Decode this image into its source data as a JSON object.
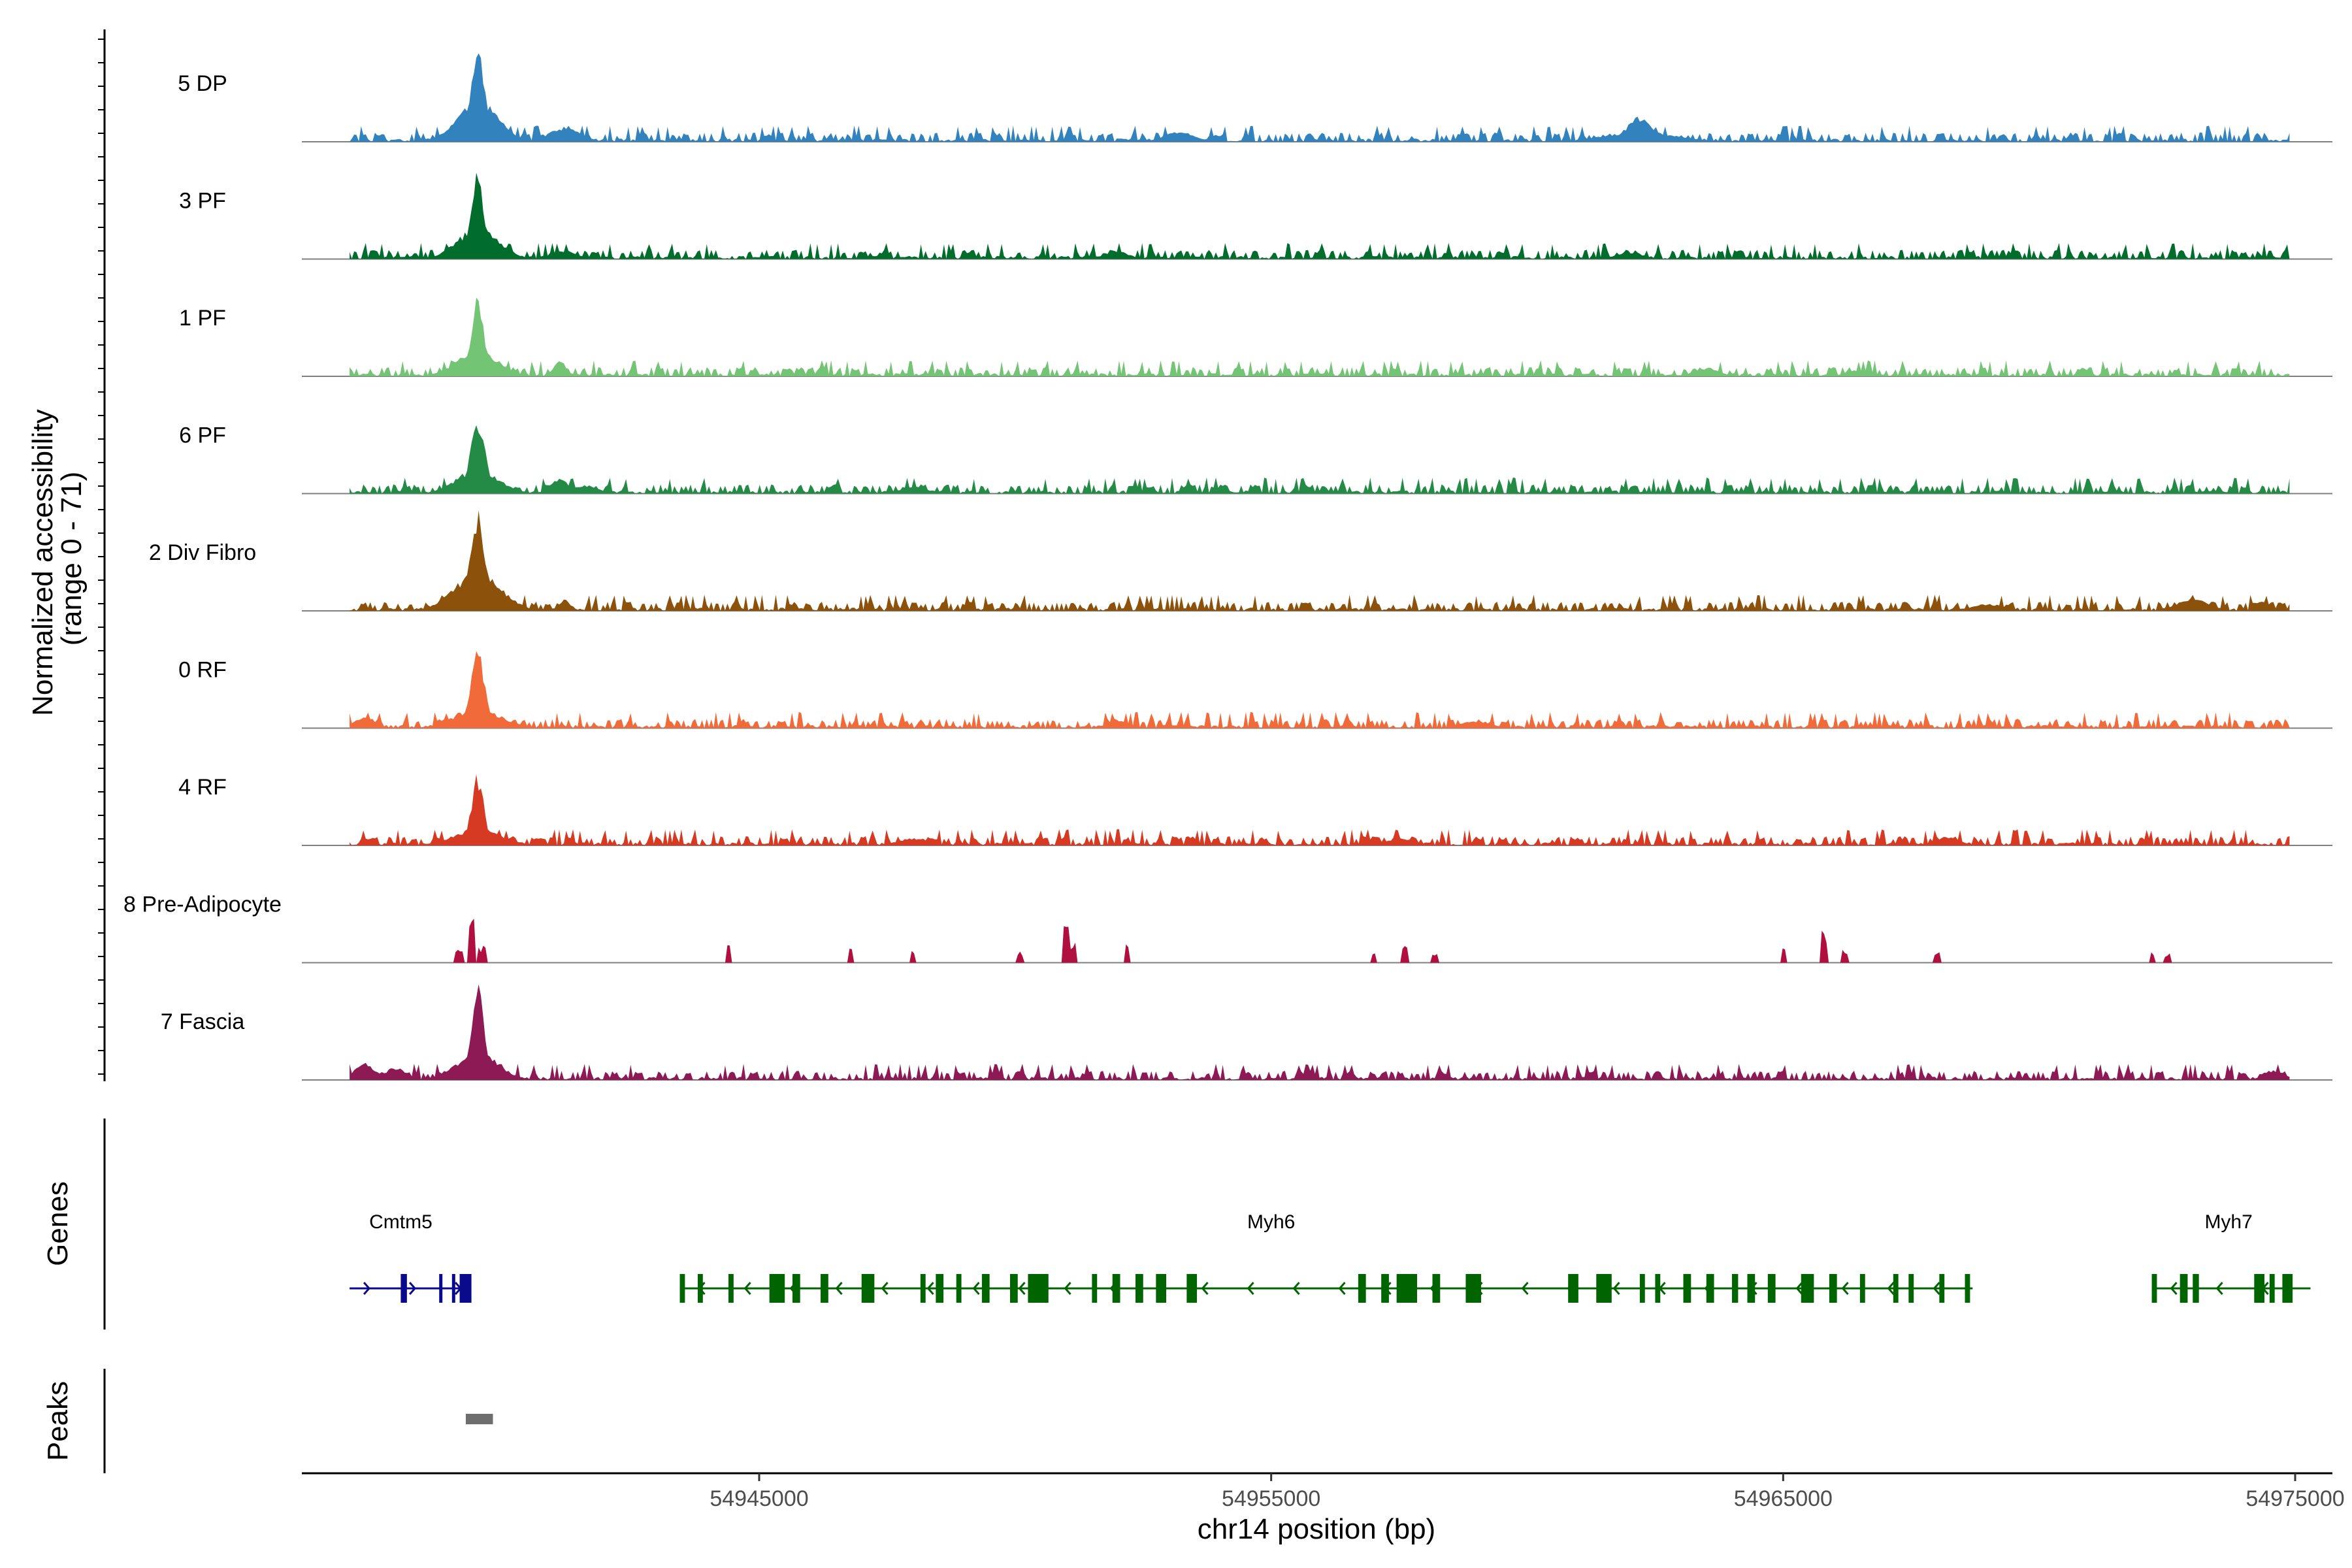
{
  "chart_data": {
    "type": "area",
    "title": "",
    "ylabel": "Normalized accessibility\n(range 0 - 71)",
    "ylabel_lines": [
      "Normalized accessibility",
      "(range 0 - 71)"
    ],
    "xlabel": "chr14 position (bp)",
    "ylim": [
      0,
      71
    ],
    "xlim": [
      54935200,
      54975700
    ],
    "x_ticks": [
      54945000,
      54955000,
      54965000,
      54975000
    ],
    "x_tick_labels": [
      "54945000",
      "54955000",
      "54965000",
      "54975000"
    ],
    "genes_panel_label": "Genes",
    "peaks_panel_label": "Peaks",
    "series": [
      {
        "name": "5 DP",
        "color": "#3182bd",
        "peaks": [
          [
            54939500,
            71,
            130
          ],
          [
            54939500,
            30,
            400
          ],
          [
            54941200,
            10,
            300
          ],
          [
            54953200,
            7,
            300
          ],
          [
            54962200,
            18,
            250
          ],
          [
            54962200,
            7,
            700
          ]
        ]
      },
      {
        "name": "3 PF",
        "color": "#006d2c",
        "peaks": [
          [
            54939500,
            60,
            120
          ],
          [
            54939500,
            22,
            400
          ],
          [
            54941200,
            6,
            250
          ],
          [
            54952000,
            6,
            200
          ],
          [
            54962000,
            5,
            250
          ]
        ]
      },
      {
        "name": "1 PF",
        "color": "#74c476",
        "peaks": [
          [
            54939500,
            60,
            120
          ],
          [
            54939500,
            18,
            400
          ],
          [
            54941100,
            12,
            120
          ],
          [
            54963500,
            6,
            250
          ],
          [
            54966500,
            5,
            250
          ]
        ]
      },
      {
        "name": "6 PF",
        "color": "#238b45",
        "peaks": [
          [
            54939500,
            55,
            140
          ],
          [
            54939500,
            18,
            400
          ],
          [
            54941100,
            11,
            180
          ],
          [
            54941600,
            6,
            250
          ],
          [
            54948000,
            5,
            250
          ]
        ]
      },
      {
        "name": "2 Div Fibro",
        "color": "#8c510a",
        "peaks": [
          [
            54939500,
            71,
            140
          ],
          [
            54939500,
            28,
            450
          ],
          [
            54941200,
            8,
            120
          ],
          [
            54973000,
            9,
            300
          ],
          [
            54969000,
            5,
            300
          ]
        ]
      },
      {
        "name": "0 RF",
        "color": "#f16a3a",
        "peaks": [
          [
            54939500,
            60,
            130
          ],
          [
            54939500,
            14,
            450
          ],
          [
            54937300,
            8,
            200
          ],
          [
            54952000,
            6,
            200
          ],
          [
            54959000,
            5,
            300
          ]
        ]
      },
      {
        "name": "4 RF",
        "color": "#d63a22",
        "peaks": [
          [
            54939500,
            50,
            120
          ],
          [
            54939500,
            12,
            450
          ],
          [
            54968200,
            6,
            250
          ],
          [
            54957500,
            5,
            300
          ],
          [
            54948000,
            5,
            300
          ]
        ]
      },
      {
        "name": "8 Pre-Adipocyte",
        "color": "#b01040",
        "sparse": true,
        "peaks": [
          [
            54939400,
            30,
            60
          ],
          [
            54939150,
            12,
            80
          ],
          [
            54939600,
            12,
            80
          ],
          [
            54944400,
            15,
            50
          ],
          [
            54946800,
            12,
            50
          ],
          [
            54948000,
            8,
            50
          ],
          [
            54950100,
            8,
            50
          ],
          [
            54951000,
            30,
            60
          ],
          [
            54951100,
            16,
            80
          ],
          [
            54952200,
            13,
            50
          ],
          [
            54957000,
            10,
            50
          ],
          [
            54957600,
            12,
            60
          ],
          [
            54958200,
            8,
            50
          ],
          [
            54965000,
            12,
            50
          ],
          [
            54965800,
            22,
            60
          ],
          [
            54966200,
            9,
            50
          ],
          [
            54968000,
            8,
            50
          ],
          [
            54972200,
            8,
            50
          ],
          [
            54972500,
            7,
            50
          ]
        ]
      },
      {
        "name": "7 Fascia",
        "color": "#8e1a55",
        "peaks": [
          [
            54939500,
            71,
            120
          ],
          [
            54939500,
            20,
            400
          ],
          [
            54937300,
            12,
            200
          ],
          [
            54937900,
            9,
            200
          ],
          [
            54974600,
            7,
            200
          ]
        ]
      }
    ],
    "genes": [
      {
        "name": "Cmtm5",
        "color": "#0a0a8c",
        "start": 54937000,
        "end": 54939300,
        "label_x": 54938000,
        "strand": "+",
        "exons": [
          [
            54938000,
            54938120
          ],
          [
            54938750,
            54938800
          ],
          [
            54939000,
            54939050
          ],
          [
            54939150,
            54939380
          ]
        ]
      },
      {
        "name": "Myh6",
        "color": "#006400",
        "start": 54943450,
        "end": 54968700,
        "label_x": 54955000,
        "strand": "-",
        "exons": [
          [
            54943450,
            54943550
          ],
          [
            54943800,
            54943900
          ],
          [
            54944400,
            54944500
          ],
          [
            54945200,
            54945500
          ],
          [
            54945650,
            54945800
          ],
          [
            54946200,
            54946350
          ],
          [
            54947000,
            54947250
          ],
          [
            54948150,
            54948250
          ],
          [
            54948450,
            54948600
          ],
          [
            54948850,
            54948950
          ],
          [
            54949350,
            54949500
          ],
          [
            54949900,
            54950050
          ],
          [
            54950250,
            54950650
          ],
          [
            54951500,
            54951600
          ],
          [
            54951900,
            54952050
          ],
          [
            54952350,
            54952500
          ],
          [
            54952750,
            54952950
          ],
          [
            54953350,
            54953550
          ],
          [
            54956700,
            54956850
          ],
          [
            54957150,
            54957300
          ],
          [
            54957450,
            54957850
          ],
          [
            54958150,
            54958300
          ],
          [
            54958800,
            54959100
          ],
          [
            54960800,
            54961000
          ],
          [
            54961350,
            54961650
          ],
          [
            54962200,
            54962300
          ],
          [
            54962500,
            54962600
          ],
          [
            54963050,
            54963200
          ],
          [
            54963500,
            54963650
          ],
          [
            54964000,
            54964120
          ],
          [
            54964300,
            54964450
          ],
          [
            54964700,
            54964850
          ],
          [
            54965350,
            54965600
          ],
          [
            54965900,
            54966050
          ],
          [
            54966500,
            54966600
          ],
          [
            54967150,
            54967250
          ],
          [
            54967450,
            54967550
          ],
          [
            54968050,
            54968150
          ],
          [
            54968550,
            54968650
          ]
        ]
      },
      {
        "name": "Myh7",
        "color": "#006400",
        "start": 54972200,
        "end": 54975300,
        "label_x": 54973700,
        "strand": "-",
        "exons": [
          [
            54972200,
            54972300
          ],
          [
            54972750,
            54972900
          ],
          [
            54973000,
            54973120
          ],
          [
            54974200,
            54974400
          ],
          [
            54974500,
            54974600
          ],
          [
            54974750,
            54974950
          ]
        ]
      }
    ],
    "peaks_regions": [
      [
        54939270,
        54939800
      ]
    ],
    "grid": false,
    "legend": "none"
  }
}
